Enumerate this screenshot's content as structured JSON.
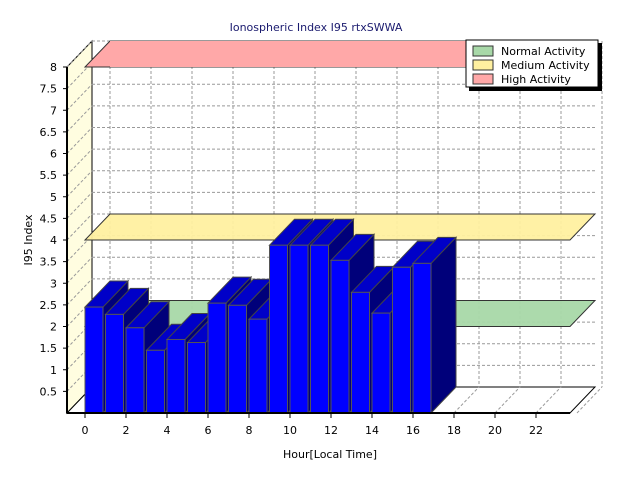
{
  "chart_data": {
    "type": "bar",
    "title": "Ionospheric Index I95 rtxSWWA",
    "xlabel": "Hour[Local Time]",
    "ylabel": "I95 Index",
    "xlim": [
      0,
      24
    ],
    "ylim": [
      0,
      8
    ],
    "x_tick_labels": [
      "0",
      "2",
      "4",
      "6",
      "8",
      "10",
      "12",
      "14",
      "16",
      "18",
      "20",
      "22"
    ],
    "y_tick_labels": [
      "0.5",
      "1",
      "1.5",
      "2",
      "2.5",
      "3",
      "3.5",
      "4",
      "4.5",
      "5",
      "5.5",
      "6",
      "6.5",
      "7",
      "7.5",
      "8"
    ],
    "grid": true,
    "three_d": true,
    "legend_position": "top-right",
    "x": [
      0,
      1,
      2,
      3,
      4,
      5,
      6,
      7,
      8,
      9,
      10,
      11,
      12,
      13,
      14,
      15,
      16
    ],
    "values": [
      2.45,
      2.28,
      1.97,
      1.45,
      1.7,
      1.63,
      2.54,
      2.49,
      2.17,
      3.88,
      3.88,
      3.88,
      3.53,
      2.79,
      2.31,
      3.37,
      3.46
    ],
    "bar_color": "#0000ff",
    "bands": [
      {
        "name": "Normal Activity",
        "level": 2,
        "color": "#a8d8a8"
      },
      {
        "name": "Medium Activity",
        "level": 4,
        "color": "#fff0a0"
      },
      {
        "name": "High Activity",
        "level": 8,
        "color": "#ffa8a8"
      }
    ]
  }
}
